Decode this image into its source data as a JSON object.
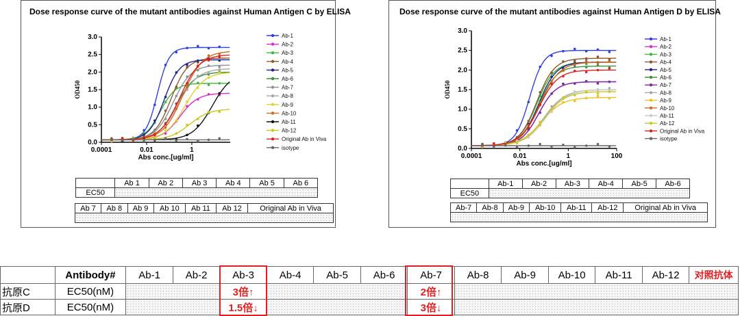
{
  "chart_data": [
    {
      "type": "line",
      "title": "Dose response curve of the mutant antibodies against Human Antigen C by ELISA",
      "xlabel": "Abs conc.[ug/ml]",
      "ylabel": "OD450",
      "xscale": "log",
      "xlim": [
        0.0001,
        50
      ],
      "ylim": [
        0,
        3.0
      ],
      "xticks": [
        "0.0001",
        "0.01",
        "1"
      ],
      "yticks": [
        "0.0",
        "0.5",
        "1.0",
        "1.5",
        "2.0",
        "2.5",
        "3.0"
      ],
      "legend_position": "right",
      "series": [
        {
          "name": "Ab-1",
          "color": "#2d3fe0",
          "ec50": 0.03,
          "top": 2.7,
          "hill": 1.7
        },
        {
          "name": "Ab-2",
          "color": "#d92cd0",
          "ec50": 0.3,
          "top": 1.4,
          "hill": 1.1
        },
        {
          "name": "Ab-3",
          "color": "#3cb83c",
          "ec50": 0.04,
          "top": 1.68,
          "hill": 1.3
        },
        {
          "name": "Ab-4",
          "color": "#8b5a2b",
          "ec50": 0.12,
          "top": 2.4,
          "hill": 1.2
        },
        {
          "name": "Ab-5",
          "color": "#1f1f8f",
          "ec50": 0.06,
          "top": 2.35,
          "hill": 1.3
        },
        {
          "name": "Ab-6",
          "color": "#3c8f3c",
          "ec50": 0.2,
          "top": 2.0,
          "hill": 1.1
        },
        {
          "name": "Ab-7",
          "color": "#909090",
          "ec50": 0.15,
          "top": 2.2,
          "hill": 1.1
        },
        {
          "name": "Ab-8",
          "color": "#a8a8a8",
          "ec50": 0.25,
          "top": 2.1,
          "hill": 1.0
        },
        {
          "name": "Ab-9",
          "color": "#e0d030",
          "ec50": 0.5,
          "top": 2.0,
          "hill": 1.0
        },
        {
          "name": "Ab-10",
          "color": "#d2691e",
          "ec50": 0.4,
          "top": 2.6,
          "hill": 1.0
        },
        {
          "name": "Ab-11",
          "color": "#111111",
          "ec50": 8.0,
          "top": 2.0,
          "hill": 1.0
        },
        {
          "name": "Ab-12",
          "color": "#c8c820",
          "ec50": 0.8,
          "top": 0.95,
          "hill": 1.0
        },
        {
          "name": "Original Ab in Viva",
          "color": "#e02020",
          "ec50": 0.3,
          "top": 2.5,
          "hill": 1.0
        },
        {
          "name": "isotype",
          "color": "#666666",
          "ec50": 1000,
          "top": 0.1,
          "hill": 1.0
        }
      ],
      "ec50_table": {
        "row1_headers": [
          "Ab 1",
          "Ab 2",
          "Ab 3",
          "Ab 4",
          "Ab 5",
          "Ab 6"
        ],
        "row1_label": "EC50",
        "row2_headers": [
          "Ab 7",
          "Ab 8",
          "Ab 9",
          "Ab 10",
          "Ab 11",
          "Ab 12",
          "Original Ab in Viva"
        ]
      }
    },
    {
      "type": "line",
      "title": "Dose response curve of the mutant antibodies against Human Antigen D by ELISA",
      "xlabel": "Abs conc.[ug/ml]",
      "ylabel": "OD450",
      "xscale": "log",
      "xlim": [
        0.0001,
        100
      ],
      "ylim": [
        0,
        3.0
      ],
      "xticks": [
        "0.0001",
        "0.01",
        "1",
        "100"
      ],
      "yticks": [
        "0.0",
        "0.5",
        "1.0",
        "1.5",
        "2.0",
        "2.5",
        "3.0"
      ],
      "legend_position": "right",
      "series": [
        {
          "name": "Ab-1",
          "color": "#2d3fe0",
          "ec50": 0.025,
          "top": 2.5,
          "hill": 1.5
        },
        {
          "name": "Ab-2",
          "color": "#d92cd0",
          "ec50": 0.06,
          "top": 1.7,
          "hill": 1.2
        },
        {
          "name": "Ab-3",
          "color": "#3cb83c",
          "ec50": 0.05,
          "top": 2.2,
          "hill": 1.2
        },
        {
          "name": "Ab-4",
          "color": "#8b5a2b",
          "ec50": 0.05,
          "top": 2.3,
          "hill": 1.2
        },
        {
          "name": "Ab-5",
          "color": "#1f1f8f",
          "ec50": 0.06,
          "top": 2.2,
          "hill": 1.2
        },
        {
          "name": "Ab-6",
          "color": "#3c8f3c",
          "ec50": 0.06,
          "top": 2.1,
          "hill": 1.2
        },
        {
          "name": "Ab-7",
          "color": "#7a2ca0",
          "ec50": 0.06,
          "top": 1.7,
          "hill": 1.2
        },
        {
          "name": "Ab-8",
          "color": "#a8a8a8",
          "ec50": 0.1,
          "top": 1.5,
          "hill": 1.0
        },
        {
          "name": "Ab-9",
          "color": "#f0c020",
          "ec50": 0.08,
          "top": 1.3,
          "hill": 1.0
        },
        {
          "name": "Ab-10",
          "color": "#d2691e",
          "ec50": 0.07,
          "top": 2.2,
          "hill": 1.1
        },
        {
          "name": "Ab-11",
          "color": "#cccccc",
          "ec50": 0.12,
          "top": 1.5,
          "hill": 1.0
        },
        {
          "name": "Ab-12",
          "color": "#c8c820",
          "ec50": 0.1,
          "top": 1.45,
          "hill": 1.0
        },
        {
          "name": "Original Ab in Viva",
          "color": "#e02020",
          "ec50": 0.06,
          "top": 2.0,
          "hill": 1.1
        },
        {
          "name": "isotype",
          "color": "#666666",
          "ec50": 1000,
          "top": 0.05,
          "hill": 1.0
        }
      ],
      "ec50_table": {
        "row1_headers": [
          "Ab-1",
          "Ab-2",
          "Ab-3",
          "Ab-4",
          "Ab-5",
          "Ab-6"
        ],
        "row1_label": "EC50",
        "row2_headers": [
          "Ab-7",
          "Ab-8",
          "Ab-9",
          "Ab-10",
          "Ab-11",
          "Ab-12",
          "Original Ab in Viva"
        ]
      }
    }
  ],
  "summary": {
    "corner": "",
    "header_label": "Antibody#",
    "columns": [
      "Ab-1",
      "Ab-2",
      "Ab-3",
      "Ab-4",
      "Ab-5",
      "Ab-6",
      "Ab-7",
      "Ab-8",
      "Ab-9",
      "Ab-10",
      "Ab-11",
      "Ab-12"
    ],
    "control_label": "对照抗体",
    "rows": [
      {
        "antigen": "抗原C",
        "metric": "EC50(nM)",
        "ab3": "3倍↑",
        "ab7": "2倍↑"
      },
      {
        "antigen": "抗原D",
        "metric": "EC50(nM)",
        "ab3": "1.5倍↓",
        "ab7": "3倍↓"
      }
    ]
  },
  "colors": {
    "highlight": "#e02020"
  }
}
